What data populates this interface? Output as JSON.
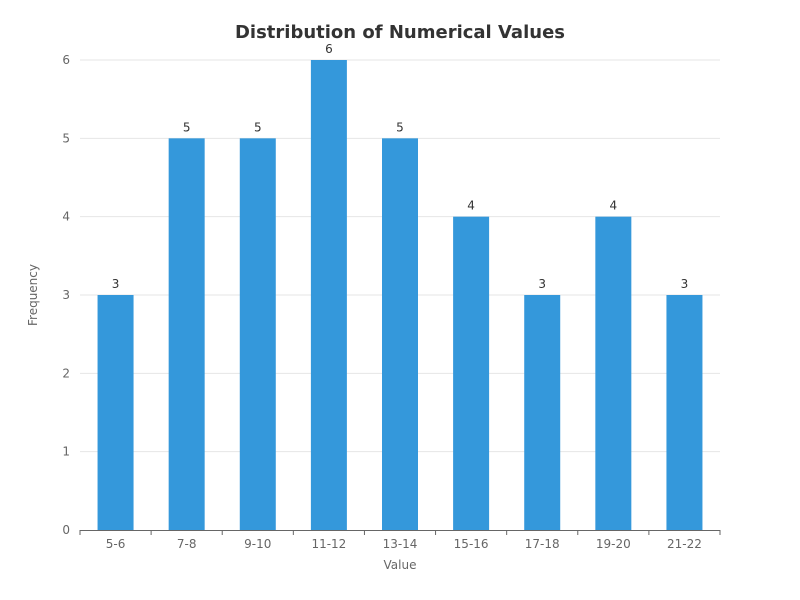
{
  "chart_data": {
    "type": "bar",
    "title": "Distribution of Numerical Values",
    "xlabel": "Value",
    "ylabel": "Frequency",
    "categories": [
      "5-6",
      "7-8",
      "9-10",
      "11-12",
      "13-14",
      "15-16",
      "17-18",
      "19-20",
      "21-22"
    ],
    "values": [
      3,
      5,
      5,
      6,
      5,
      4,
      3,
      4,
      3
    ],
    "ylim": [
      0,
      6
    ],
    "yticks": [
      0,
      1,
      2,
      3,
      4,
      5,
      6
    ],
    "grid": true,
    "data_labels": true,
    "bar_color": "#3498db"
  }
}
